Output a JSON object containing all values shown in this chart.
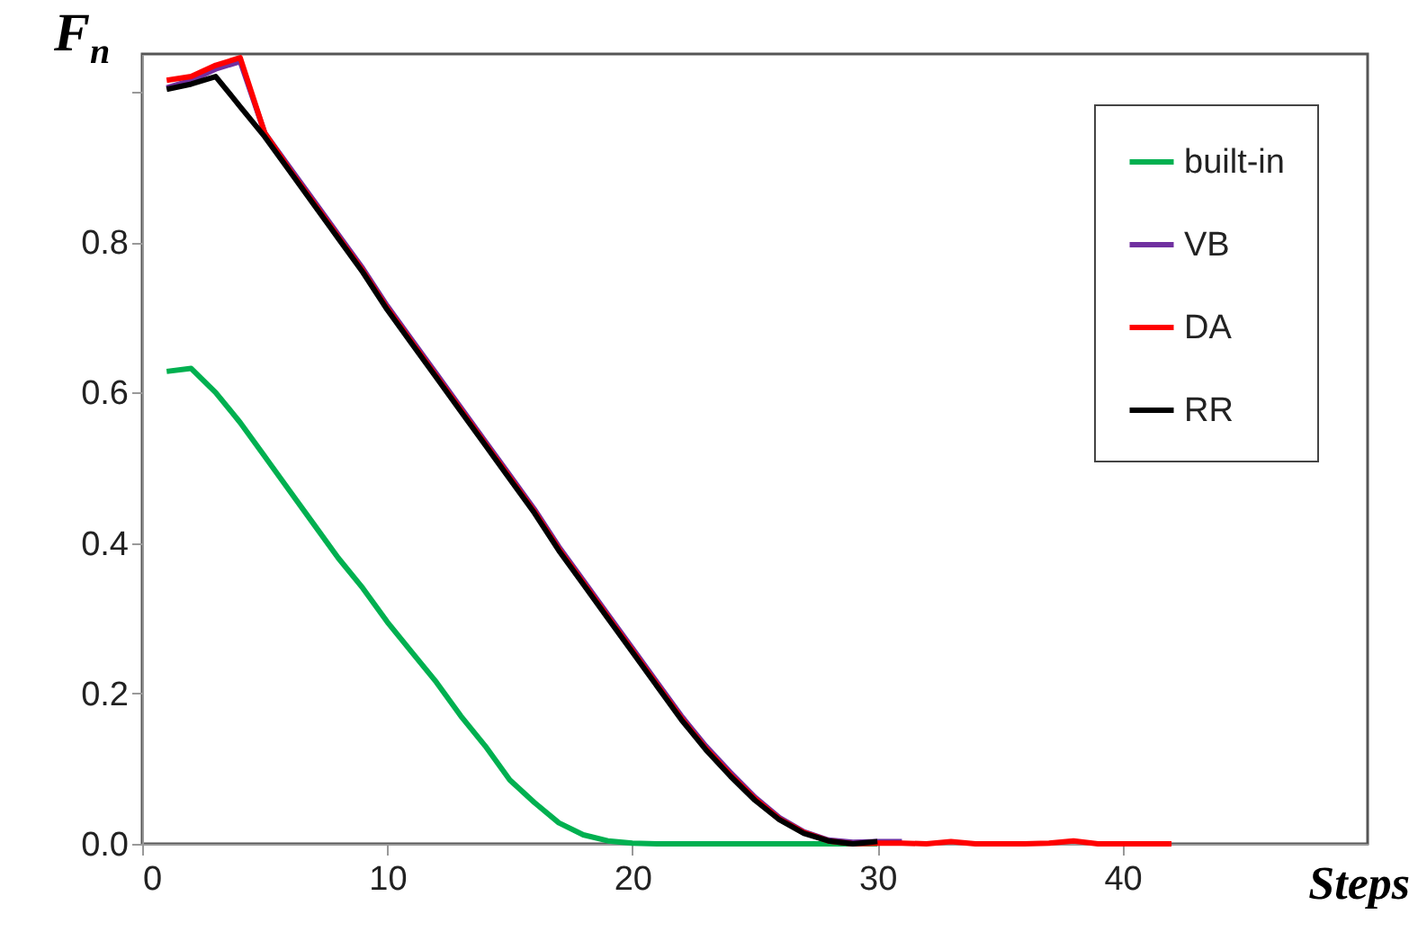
{
  "chart_data": {
    "type": "line",
    "xlabel": "Steps",
    "ylabel": "F$_{n}$",
    "x": [
      1,
      2,
      3,
      4,
      5,
      6,
      7,
      8,
      9,
      10,
      11,
      12,
      13,
      14,
      15,
      16,
      17,
      18,
      19,
      20,
      21,
      22,
      23,
      24,
      25,
      26,
      27,
      28,
      29,
      30
    ],
    "xlim": [
      0,
      50
    ],
    "xticks": [
      0,
      10,
      20,
      30,
      40
    ],
    "ylim": [
      0,
      1.05
    ],
    "yticks": [
      {
        "value": 0,
        "label": "0.0"
      },
      {
        "value": 0.2,
        "label": "0.2"
      },
      {
        "value": 0.4,
        "label": "0.4"
      },
      {
        "value": 0.6,
        "label": "0.6"
      },
      {
        "value": 0.8,
        "label": "0.8"
      },
      {
        "value": 1,
        "label": null
      }
    ],
    "grid": false,
    "legend": "top right",
    "marker": "none",
    "line_style": "solid",
    "series": [
      {
        "name": "built-in",
        "color": "#00b050",
        "values": [
          0.628,
          0.632,
          0.6,
          0.56,
          0.515,
          0.47,
          0.425,
          0.38,
          0.34,
          0.295,
          0.255,
          0.215,
          0.17,
          0.13,
          0.085,
          0.055,
          0.028,
          0.012,
          0.004,
          0.001,
          0,
          0,
          0,
          0,
          0,
          0,
          0,
          0,
          0,
          0
        ]
      },
      {
        "name": "VB",
        "color": "#7030a0",
        "x": [
          1,
          2,
          3,
          4,
          5,
          6,
          7,
          8,
          9,
          10,
          11,
          12,
          13,
          14,
          15,
          16,
          17,
          18,
          19,
          20,
          21,
          22,
          23,
          24,
          25,
          26,
          27,
          28,
          29,
          30,
          31
        ],
        "values": [
          1.005,
          1.015,
          1.03,
          1.04,
          0.945,
          0.9,
          0.855,
          0.81,
          0.765,
          0.715,
          0.67,
          0.625,
          0.58,
          0.535,
          0.49,
          0.445,
          0.395,
          0.35,
          0.305,
          0.26,
          0.215,
          0.17,
          0.13,
          0.095,
          0.062,
          0.035,
          0.016,
          0.005,
          0.002,
          0.003,
          0.003
        ]
      },
      {
        "name": "DA",
        "color": "#ff0000",
        "x": [
          1,
          2,
          3,
          4,
          5,
          6,
          7,
          8,
          9,
          10,
          11,
          12,
          13,
          14,
          15,
          16,
          17,
          18,
          19,
          20,
          21,
          22,
          23,
          24,
          25,
          26,
          27,
          28,
          29,
          30,
          31,
          32,
          33,
          34,
          35,
          36,
          37,
          38,
          39,
          40,
          41,
          42
        ],
        "values": [
          1.015,
          1.02,
          1.035,
          1.045,
          0.945,
          0.897,
          0.852,
          0.807,
          0.762,
          0.712,
          0.667,
          0.622,
          0.577,
          0.532,
          0.487,
          0.442,
          0.392,
          0.347,
          0.302,
          0.257,
          0.212,
          0.167,
          0.127,
          0.092,
          0.06,
          0.033,
          0.015,
          0.004,
          0,
          0.001,
          0.001,
          0,
          0.003,
          0,
          0,
          0,
          0.001,
          0.004,
          0,
          0,
          0,
          0
        ]
      },
      {
        "name": "RR",
        "color": "#000000",
        "values": [
          1.003,
          1.01,
          1.02,
          0.98,
          0.94,
          0.895,
          0.85,
          0.805,
          0.76,
          0.71,
          0.665,
          0.62,
          0.575,
          0.53,
          0.485,
          0.44,
          0.39,
          0.345,
          0.3,
          0.255,
          0.21,
          0.165,
          0.125,
          0.09,
          0.058,
          0.032,
          0.014,
          0.004,
          0,
          0.003
        ]
      }
    ]
  }
}
